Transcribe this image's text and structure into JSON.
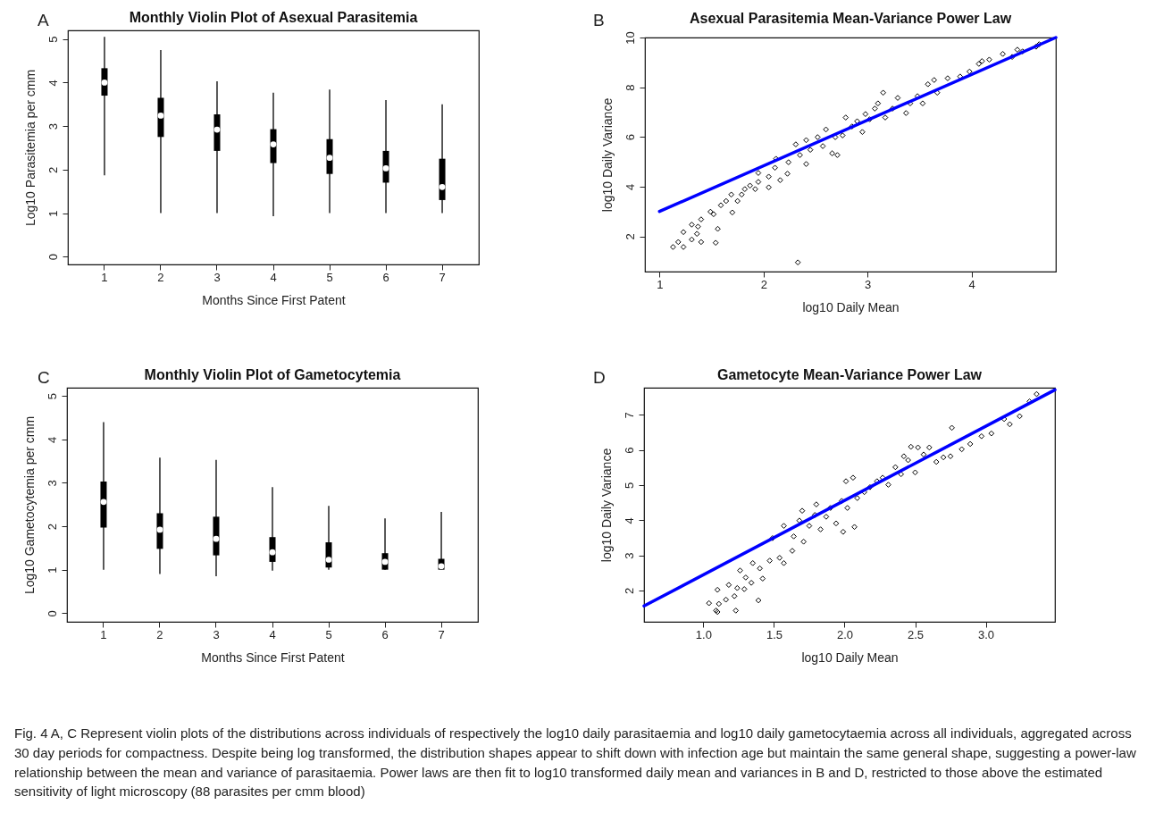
{
  "chart_data": [
    {
      "type": "box",
      "title": "Monthly Violin Plot of Asexual Parasitemia",
      "xlabel": "Months Since First Patent",
      "ylabel": "Log10 Parasitemia per cmm",
      "categories": [
        "1",
        "2",
        "3",
        "4",
        "5",
        "6",
        "7"
      ],
      "ylim": [
        -0.18,
        5.2
      ],
      "yticks": [
        0,
        1,
        2,
        3,
        4,
        5
      ],
      "grid": false,
      "annotations": [
        "A"
      ],
      "boxes": [
        {
          "low": 1.87,
          "q1": 3.7,
          "median": 4.0,
          "q3": 4.33,
          "high": 5.05
        },
        {
          "low": 1.0,
          "q1": 2.75,
          "median": 3.24,
          "q3": 3.65,
          "high": 4.75
        },
        {
          "low": 1.0,
          "q1": 2.43,
          "median": 2.92,
          "q3": 3.27,
          "high": 4.03
        },
        {
          "low": 0.93,
          "q1": 2.15,
          "median": 2.58,
          "q3": 2.93,
          "high": 3.77
        },
        {
          "low": 1.0,
          "q1": 1.9,
          "median": 2.27,
          "q3": 2.7,
          "high": 3.84
        },
        {
          "low": 1.0,
          "q1": 1.7,
          "median": 2.03,
          "q3": 2.43,
          "high": 3.6
        },
        {
          "low": 1.0,
          "q1": 1.3,
          "median": 1.6,
          "q3": 2.25,
          "high": 3.5
        }
      ]
    },
    {
      "type": "scatter",
      "title": "Asexual Parasitemia Mean-Variance Power Law",
      "xlabel": "log10 Daily Mean",
      "ylabel": "log10 Daily Variance",
      "xlim": [
        0.86,
        4.81
      ],
      "xticks": [
        1,
        2,
        3,
        4
      ],
      "ylim": [
        0.58,
        10.0
      ],
      "yticks": [
        2,
        4,
        6,
        8,
        10
      ],
      "grid": false,
      "annotations": [
        "B"
      ],
      "series": [
        {
          "type": "scatter",
          "marker": "diamond",
          "color": "#000000",
          "x": [
            1.13,
            1.18,
            1.23,
            1.23,
            1.31,
            1.31,
            1.36,
            1.37,
            1.4,
            1.4,
            1.49,
            1.54,
            1.56,
            1.52,
            1.59,
            1.64,
            1.69,
            1.7,
            1.75,
            1.79,
            1.82,
            1.87,
            1.92,
            1.95,
            1.95,
            2.05,
            2.05,
            2.11,
            2.12,
            2.16,
            2.23,
            2.24,
            2.31,
            2.33,
            2.35,
            2.41,
            2.41,
            2.45,
            2.52,
            2.57,
            2.6,
            2.66,
            2.71,
            2.69,
            2.76,
            2.79,
            2.85,
            2.9,
            2.95,
            2.98,
            3.02,
            3.07,
            3.1,
            3.15,
            3.17,
            3.24,
            3.29,
            3.37,
            3.41,
            3.48,
            3.53,
            3.58,
            3.64,
            3.67,
            3.77,
            3.89,
            3.98,
            4.07,
            4.1,
            4.17,
            4.3,
            4.39,
            4.44,
            4.49,
            4.62,
            4.65
          ],
          "values": [
            1.57,
            1.77,
            1.57,
            2.17,
            1.87,
            2.47,
            2.1,
            2.39,
            1.77,
            2.68,
            2.99,
            1.74,
            2.3,
            2.89,
            3.25,
            3.42,
            3.68,
            2.96,
            3.42,
            3.68,
            3.9,
            4.04,
            3.9,
            4.19,
            4.55,
            3.97,
            4.4,
            4.76,
            5.12,
            4.26,
            4.52,
            4.98,
            5.7,
            0.95,
            5.27,
            4.91,
            5.87,
            5.48,
            5.99,
            5.63,
            6.3,
            5.34,
            5.27,
            5.99,
            6.06,
            6.78,
            6.42,
            6.63,
            6.2,
            6.92,
            6.71,
            7.14,
            7.35,
            7.78,
            6.78,
            7.14,
            7.57,
            6.96,
            7.35,
            7.64,
            7.35,
            8.12,
            8.29,
            7.78,
            8.36,
            8.43,
            8.63,
            8.94,
            9.05,
            9.11,
            9.34,
            9.22,
            9.51,
            9.44,
            9.63,
            9.73
          ]
        },
        {
          "type": "line",
          "marker": "none",
          "color": "#0000ff",
          "x": [
            1.0,
            4.81
          ],
          "values": [
            3.0,
            10.0
          ]
        }
      ]
    },
    {
      "type": "box",
      "title": "Monthly Violin Plot of Gametocytemia",
      "xlabel": "Months Since First Patent",
      "ylabel": "Log10 Gametocytemia per cmm",
      "categories": [
        "1",
        "2",
        "3",
        "4",
        "5",
        "6",
        "7"
      ],
      "ylim": [
        -0.2,
        5.19
      ],
      "yticks": [
        0,
        1,
        2,
        3,
        4,
        5
      ],
      "grid": false,
      "annotations": [
        "C"
      ],
      "boxes": [
        {
          "low": 1.0,
          "q1": 1.97,
          "median": 2.56,
          "q3": 3.03,
          "high": 4.4
        },
        {
          "low": 0.9,
          "q1": 1.48,
          "median": 1.92,
          "q3": 2.3,
          "high": 3.58
        },
        {
          "low": 0.85,
          "q1": 1.33,
          "median": 1.71,
          "q3": 2.22,
          "high": 3.53
        },
        {
          "low": 0.98,
          "q1": 1.18,
          "median": 1.4,
          "q3": 1.75,
          "high": 2.9
        },
        {
          "low": 1.0,
          "q1": 1.05,
          "median": 1.23,
          "q3": 1.63,
          "high": 2.47
        },
        {
          "low": 1.0,
          "q1": 1.0,
          "median": 1.18,
          "q3": 1.38,
          "high": 2.18
        },
        {
          "low": 1.0,
          "q1": 1.0,
          "median": 1.08,
          "q3": 1.25,
          "high": 2.33
        }
      ]
    },
    {
      "type": "scatter",
      "title": "Gametocyte Mean-Variance Power Law",
      "xlabel": "log10 Daily Mean",
      "ylabel": "log10 Daily Variance",
      "xlim": [
        0.58,
        3.49
      ],
      "xticks": [
        {
          "value": 1,
          "label": "1.0"
        },
        {
          "value": 1.5,
          "label": "1.5"
        },
        {
          "value": 2,
          "label": "2.0"
        },
        {
          "value": 2.5,
          "label": "2.5"
        },
        {
          "value": 3,
          "label": "3.0"
        }
      ],
      "ylim": [
        1.11,
        7.77
      ],
      "yticks": [
        2,
        3,
        4,
        5,
        6,
        7
      ],
      "grid": false,
      "annotations": [
        "D",
        "Fig. 4 A, C Represent violin plots of the distributions across individuals of respectively the log10 daily parasitaemia and log10 daily gametocytaemia across all individuals, aggregated across 30 day periods for compactness. Despite being log transformed, the distribution shapes appear to shift down with infection age but maintain the same general shape, suggesting a power-law relationship between the mean and variance of parasitaemia. Power laws are then fit to log10 transformed daily mean and variances in B and D, restricted to those above the estimated sensitivity of light microscopy (88 parasites per cmm blood)"
      ],
      "series": [
        {
          "type": "scatter",
          "marker": "diamond",
          "color": "#000000",
          "x": [
            1.04,
            1.09,
            1.1,
            1.1,
            1.11,
            1.16,
            1.18,
            1.22,
            1.23,
            1.24,
            1.26,
            1.29,
            1.3,
            1.34,
            1.35,
            1.39,
            1.4,
            1.42,
            1.47,
            1.49,
            1.54,
            1.57,
            1.57,
            1.63,
            1.64,
            1.68,
            1.7,
            1.71,
            1.75,
            1.79,
            1.8,
            1.83,
            1.87,
            1.9,
            1.94,
            1.98,
            1.99,
            2.01,
            2.02,
            2.06,
            2.07,
            2.09,
            2.14,
            2.18,
            2.23,
            2.27,
            2.31,
            2.36,
            2.4,
            2.42,
            2.45,
            2.47,
            2.5,
            2.52,
            2.56,
            2.6,
            2.65,
            2.7,
            2.75,
            2.76,
            2.83,
            2.89,
            2.97,
            3.04,
            3.13,
            3.17,
            3.24,
            3.31,
            3.36
          ],
          "values": [
            1.64,
            1.43,
            1.39,
            2.02,
            1.62,
            1.74,
            2.16,
            1.84,
            1.43,
            2.07,
            2.57,
            2.04,
            2.37,
            2.22,
            2.78,
            1.72,
            2.63,
            2.34,
            2.85,
            3.49,
            2.93,
            2.78,
            3.84,
            3.13,
            3.54,
            3.99,
            4.27,
            3.39,
            3.84,
            4.15,
            4.45,
            3.74,
            4.1,
            4.35,
            3.91,
            4.55,
            3.67,
            5.11,
            4.35,
            5.21,
            3.81,
            4.63,
            4.8,
            4.94,
            5.11,
            5.21,
            5.01,
            5.51,
            5.31,
            5.82,
            5.71,
            6.09,
            5.36,
            6.07,
            5.87,
            6.07,
            5.66,
            5.79,
            5.82,
            6.63,
            6.02,
            6.17,
            6.39,
            6.47,
            6.88,
            6.73,
            6.96,
            7.38,
            7.59
          ]
        },
        {
          "type": "line",
          "marker": "none",
          "color": "#0000ff",
          "x": [
            0.58,
            3.49
          ],
          "values": [
            1.56,
            7.71
          ]
        }
      ]
    }
  ]
}
